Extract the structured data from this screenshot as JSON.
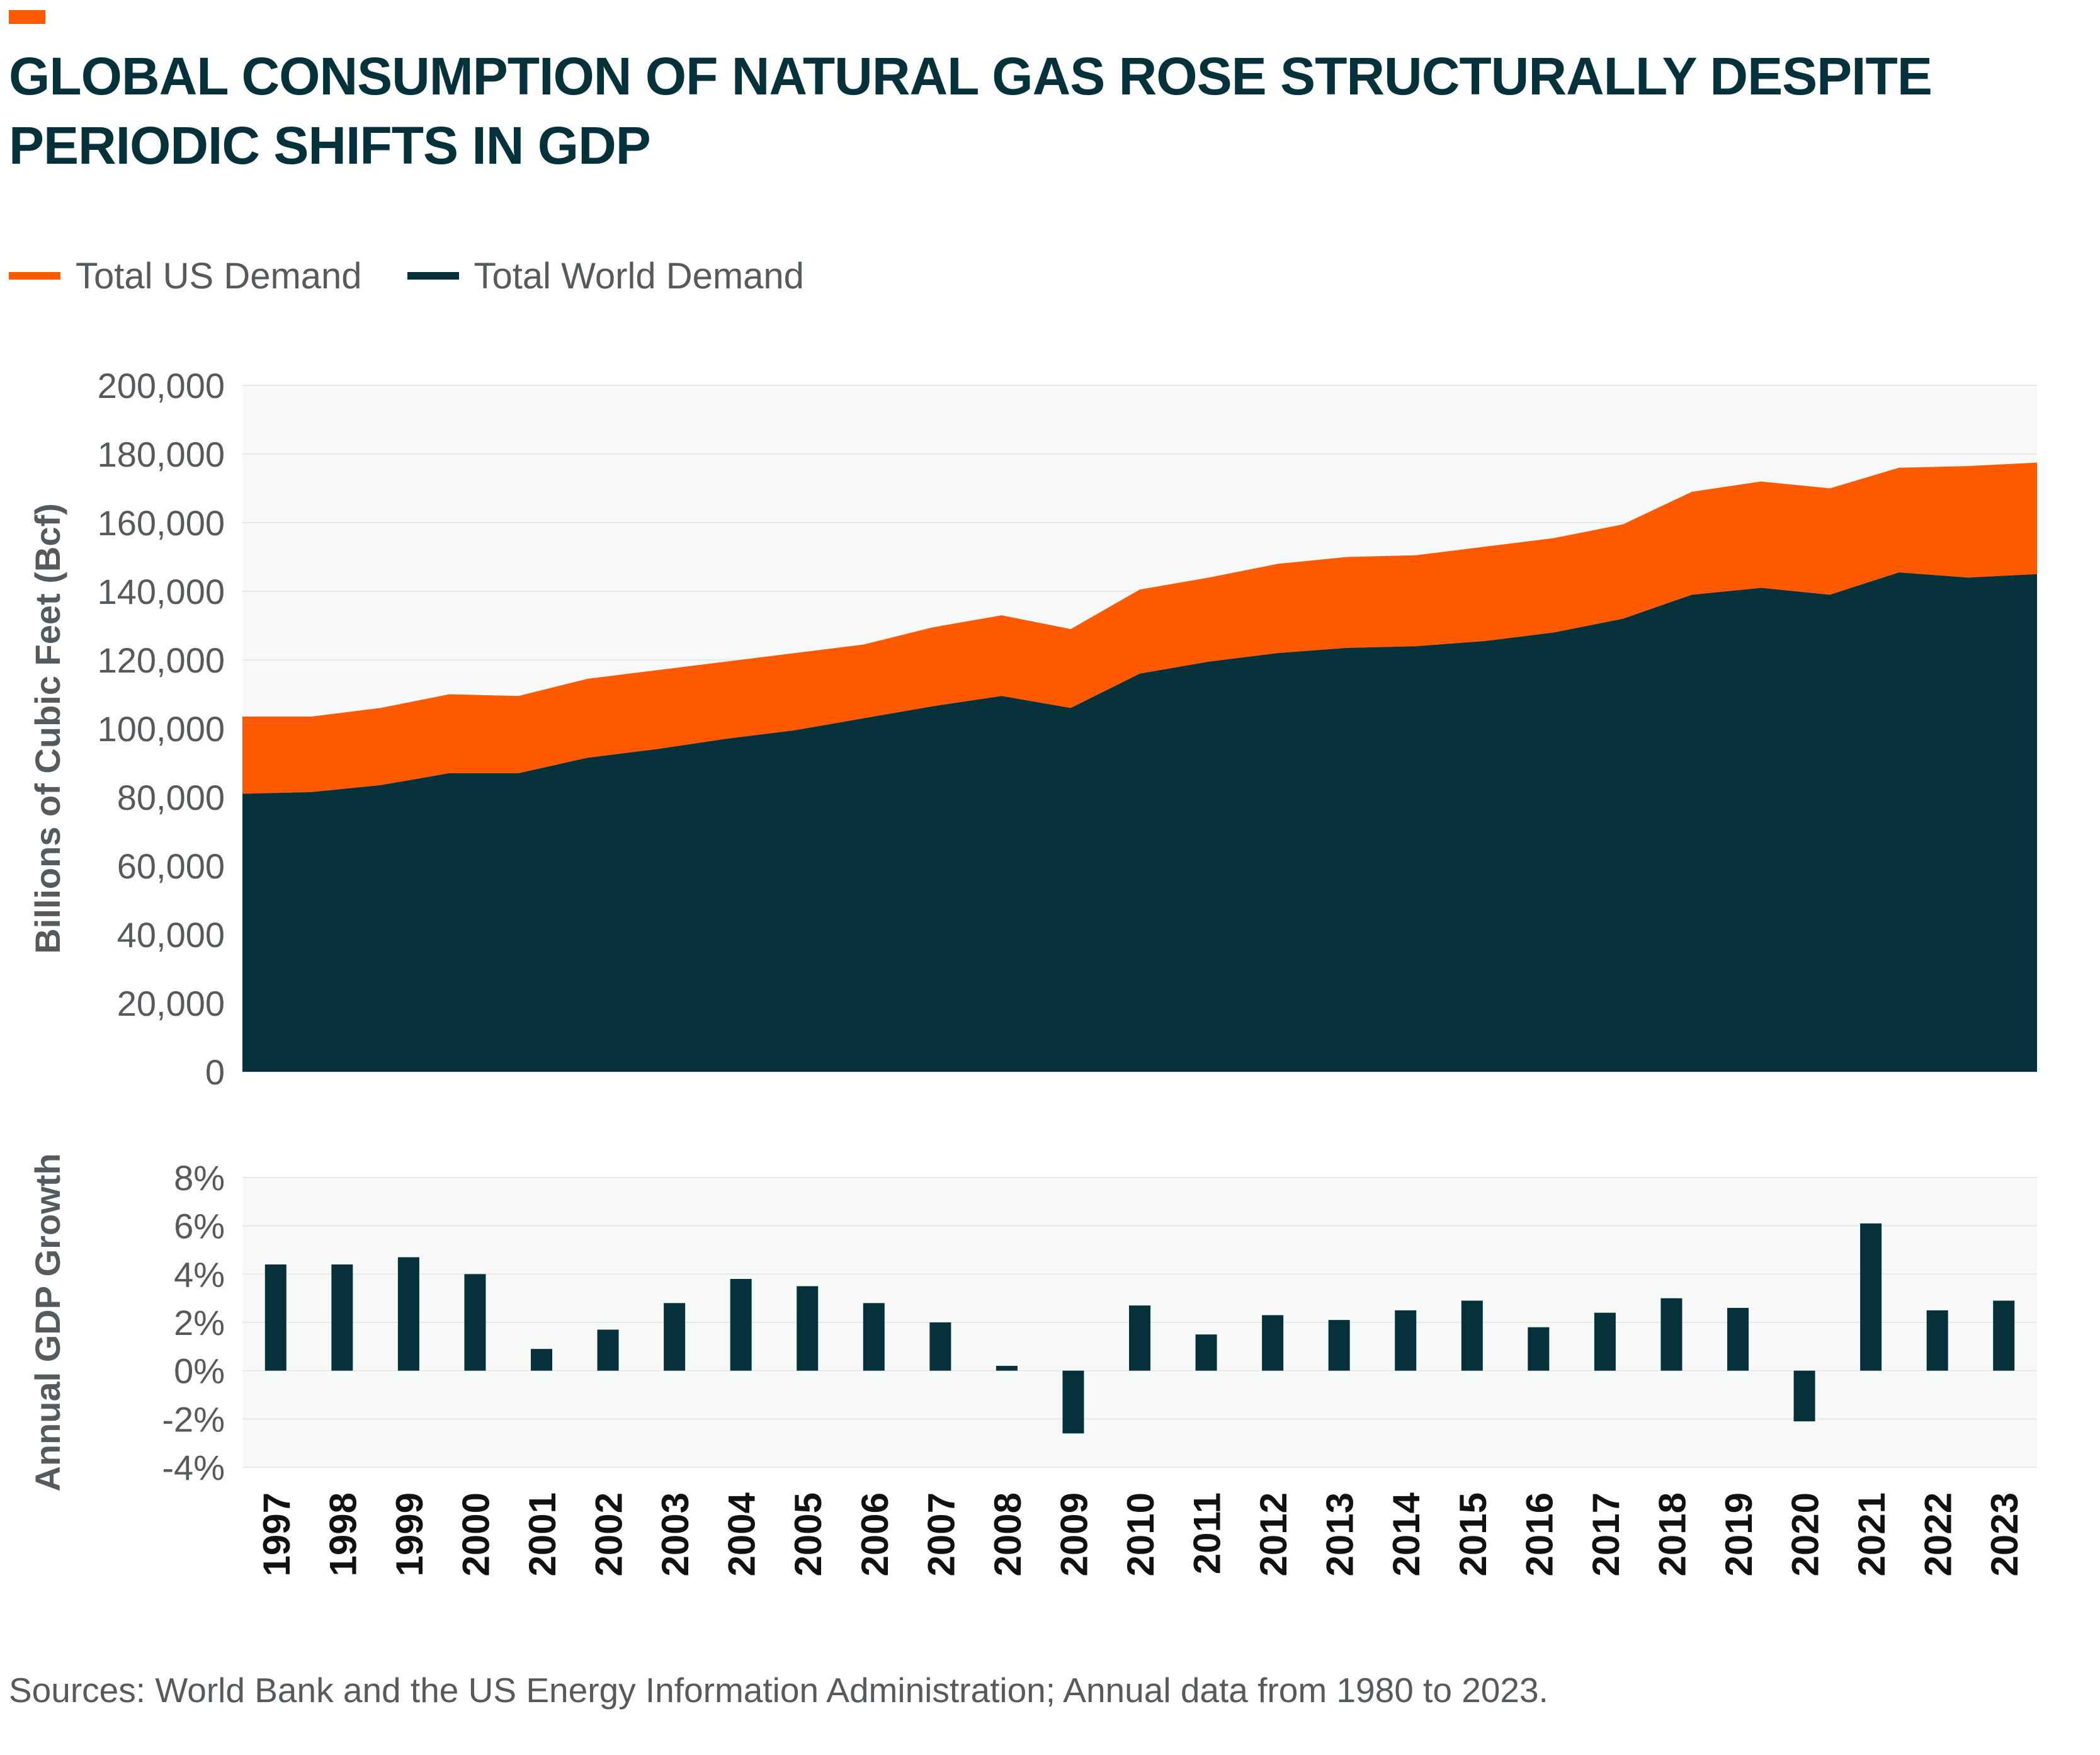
{
  "title": "GLOBAL CONSUMPTION OF NATURAL GAS ROSE STRUCTURALLY DESPITE PERIODIC SHIFTS IN GDP",
  "source": "Sources: World Bank and the US Energy Information Administration; Annual data from 1980 to 2023.",
  "colors": {
    "us": "#ff5a00",
    "world": "#05313b",
    "gdp": "#05313b",
    "text": "#555a5e",
    "grid": "#e8e8e8",
    "plot_bg": "#f7f8f8"
  },
  "legend": [
    {
      "label": "Total US Demand",
      "color": "#ff5a00"
    },
    {
      "label": "Total World Demand",
      "color": "#05313b"
    }
  ],
  "chart_data": [
    {
      "type": "area",
      "stacked": true,
      "ylabel": "Billions of Cubic Feet (Bcf)",
      "ylim": [
        0,
        200000
      ],
      "yticks": [
        "200,000",
        "180,000",
        "160,000",
        "140,000",
        "120,000",
        "100,000",
        "80,000",
        "60,000",
        "40,000",
        "20,000",
        "0"
      ],
      "ytick_values": [
        200000,
        180000,
        160000,
        140000,
        120000,
        100000,
        80000,
        60000,
        40000,
        20000,
        0
      ],
      "x": [
        1997,
        1998,
        1999,
        2000,
        2001,
        2002,
        2003,
        2004,
        2005,
        2006,
        2007,
        2008,
        2009,
        2010,
        2011,
        2012,
        2013,
        2014,
        2015,
        2016,
        2017,
        2018,
        2019,
        2020,
        2021,
        2022,
        2023
      ],
      "series": [
        {
          "name": "Total World Demand",
          "values": [
            81000,
            81500,
            83500,
            87000,
            87000,
            91500,
            94000,
            97000,
            99500,
            103000,
            106500,
            109500,
            106000,
            116000,
            119500,
            122000,
            123500,
            124000,
            125500,
            128000,
            132000,
            139000,
            141000,
            139000,
            145500,
            144000,
            145000
          ]
        },
        {
          "name": "Total US Demand",
          "values": [
            22500,
            22000,
            22500,
            23000,
            22500,
            23000,
            23000,
            22500,
            22500,
            21500,
            23000,
            23500,
            23000,
            24500,
            24500,
            26000,
            26500,
            26500,
            27500,
            27500,
            27500,
            30000,
            31000,
            31000,
            30500,
            32500,
            32500
          ]
        }
      ]
    },
    {
      "type": "bar",
      "ylabel": "Annual GDP Growth",
      "ylim": [
        -4,
        8
      ],
      "yticks": [
        "8%",
        "6%",
        "4%",
        "2%",
        "0%",
        "-2%",
        "-4%"
      ],
      "ytick_values": [
        8,
        6,
        4,
        2,
        0,
        -2,
        -4
      ],
      "categories": [
        "1997",
        "1998",
        "1999",
        "2000",
        "2001",
        "2002",
        "2003",
        "2004",
        "2005",
        "2006",
        "2007",
        "2008",
        "2009",
        "2010",
        "2011",
        "2012",
        "2013",
        "2014",
        "2015",
        "2016",
        "2017",
        "2018",
        "2019",
        "2020",
        "2021",
        "2022",
        "2023"
      ],
      "values": [
        4.4,
        4.4,
        4.7,
        4.0,
        0.9,
        1.7,
        2.8,
        3.8,
        3.5,
        2.8,
        2.0,
        0.2,
        -2.6,
        2.7,
        1.5,
        2.3,
        2.1,
        2.5,
        2.9,
        1.8,
        2.4,
        3.0,
        2.6,
        -2.1,
        6.1,
        2.5,
        2.9
      ]
    }
  ]
}
